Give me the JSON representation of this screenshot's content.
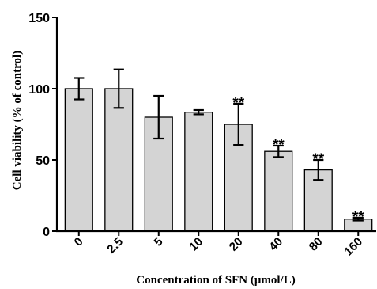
{
  "chart_data": {
    "type": "bar",
    "title": "",
    "xlabel": "Concentration of SFN (μmol/L)",
    "ylabel": "Cell viability (% of control)",
    "ylim": [
      0,
      150
    ],
    "yticks": [
      0,
      50,
      100,
      150
    ],
    "grid": false,
    "legend": "none",
    "bar_color": "#d4d4d4",
    "categories": [
      "0",
      "2.5",
      "5",
      "10",
      "20",
      "40",
      "80",
      "160"
    ],
    "values": [
      100,
      100,
      80,
      83.5,
      75,
      56,
      43,
      8.5
    ],
    "errors": [
      7.5,
      13.5,
      15,
      1.5,
      14.5,
      4,
      7,
      1
    ],
    "annotations": [
      "",
      "",
      "",
      "",
      "**",
      "**",
      "**",
      "**"
    ]
  }
}
